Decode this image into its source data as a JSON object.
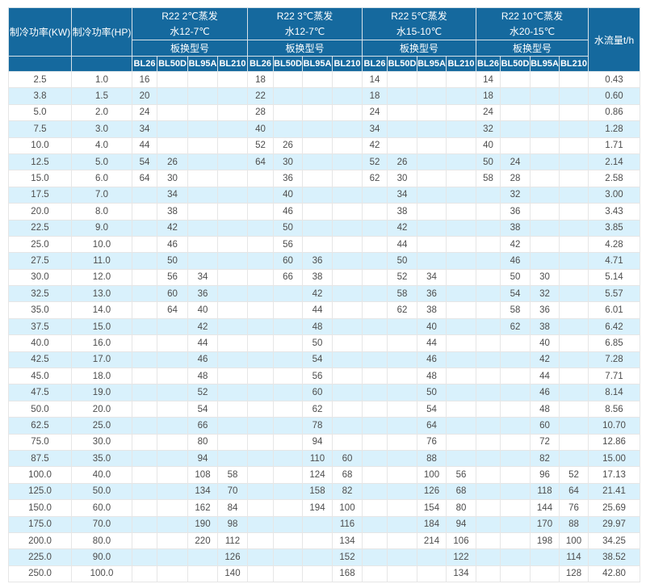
{
  "table": {
    "columns": {
      "kw": "制冷功率(KW)",
      "hp": "制冷功率(HP)",
      "flow": "水流量t/h"
    },
    "model_label": "板换型号",
    "groups": [
      {
        "title": "R22 2℃蒸发",
        "subtitle": "水12-7℃",
        "models": [
          "BL26",
          "BL50D",
          "BL95A",
          "BL210"
        ]
      },
      {
        "title": "R22 3℃蒸发",
        "subtitle": "水12-7℃",
        "models": [
          "BL26",
          "BL50D",
          "BL95A",
          "BL210"
        ]
      },
      {
        "title": "R22 5℃蒸发",
        "subtitle": "水15-10℃",
        "models": [
          "BL26",
          "BL50D",
          "BL95A",
          "BL210"
        ]
      },
      {
        "title": "R22 10℃蒸发",
        "subtitle": "水20-15℃",
        "models": [
          "BL26",
          "BL50D",
          "BL95A",
          "BL210"
        ]
      }
    ],
    "rows": [
      {
        "kw": "2.5",
        "hp": "1.0",
        "cells": [
          "16",
          "",
          "",
          "",
          "18",
          "",
          "",
          "",
          "14",
          "",
          "",
          "",
          "14",
          "",
          "",
          ""
        ],
        "flow": "0.43"
      },
      {
        "kw": "3.8",
        "hp": "1.5",
        "cells": [
          "20",
          "",
          "",
          "",
          "22",
          "",
          "",
          "",
          "18",
          "",
          "",
          "",
          "18",
          "",
          "",
          ""
        ],
        "flow": "0.60"
      },
      {
        "kw": "5.0",
        "hp": "2.0",
        "cells": [
          "24",
          "",
          "",
          "",
          "28",
          "",
          "",
          "",
          "24",
          "",
          "",
          "",
          "24",
          "",
          "",
          ""
        ],
        "flow": "0.86"
      },
      {
        "kw": "7.5",
        "hp": "3.0",
        "cells": [
          "34",
          "",
          "",
          "",
          "40",
          "",
          "",
          "",
          "34",
          "",
          "",
          "",
          "32",
          "",
          "",
          ""
        ],
        "flow": "1.28"
      },
      {
        "kw": "10.0",
        "hp": "4.0",
        "cells": [
          "44",
          "",
          "",
          "",
          "52",
          "26",
          "",
          "",
          "42",
          "",
          "",
          "",
          "40",
          "",
          "",
          ""
        ],
        "flow": "1.71"
      },
      {
        "kw": "12.5",
        "hp": "5.0",
        "cells": [
          "54",
          "26",
          "",
          "",
          "64",
          "30",
          "",
          "",
          "52",
          "26",
          "",
          "",
          "50",
          "24",
          "",
          ""
        ],
        "flow": "2.14"
      },
      {
        "kw": "15.0",
        "hp": "6.0",
        "cells": [
          "64",
          "30",
          "",
          "",
          "",
          "36",
          "",
          "",
          "62",
          "30",
          "",
          "",
          "58",
          "28",
          "",
          ""
        ],
        "flow": "2.58"
      },
      {
        "kw": "17.5",
        "hp": "7.0",
        "cells": [
          "",
          "34",
          "",
          "",
          "",
          "40",
          "",
          "",
          "",
          "34",
          "",
          "",
          "",
          "32",
          "",
          ""
        ],
        "flow": "3.00"
      },
      {
        "kw": "20.0",
        "hp": "8.0",
        "cells": [
          "",
          "38",
          "",
          "",
          "",
          "46",
          "",
          "",
          "",
          "38",
          "",
          "",
          "",
          "36",
          "",
          ""
        ],
        "flow": "3.43"
      },
      {
        "kw": "22.5",
        "hp": "9.0",
        "cells": [
          "",
          "42",
          "",
          "",
          "",
          "50",
          "",
          "",
          "",
          "42",
          "",
          "",
          "",
          "38",
          "",
          ""
        ],
        "flow": "3.85"
      },
      {
        "kw": "25.0",
        "hp": "10.0",
        "cells": [
          "",
          "46",
          "",
          "",
          "",
          "56",
          "",
          "",
          "",
          "44",
          "",
          "",
          "",
          "42",
          "",
          ""
        ],
        "flow": "4.28"
      },
      {
        "kw": "27.5",
        "hp": "11.0",
        "cells": [
          "",
          "50",
          "",
          "",
          "",
          "60",
          "36",
          "",
          "",
          "50",
          "",
          "",
          "",
          "46",
          "",
          ""
        ],
        "flow": "4.71"
      },
      {
        "kw": "30.0",
        "hp": "12.0",
        "cells": [
          "",
          "56",
          "34",
          "",
          "",
          "66",
          "38",
          "",
          "",
          "52",
          "34",
          "",
          "",
          "50",
          "30",
          ""
        ],
        "flow": "5.14"
      },
      {
        "kw": "32.5",
        "hp": "13.0",
        "cells": [
          "",
          "60",
          "36",
          "",
          "",
          "",
          "42",
          "",
          "",
          "58",
          "36",
          "",
          "",
          "54",
          "32",
          ""
        ],
        "flow": "5.57"
      },
      {
        "kw": "35.0",
        "hp": "14.0",
        "cells": [
          "",
          "64",
          "40",
          "",
          "",
          "",
          "44",
          "",
          "",
          "62",
          "38",
          "",
          "",
          "58",
          "36",
          ""
        ],
        "flow": "6.01"
      },
      {
        "kw": "37.5",
        "hp": "15.0",
        "cells": [
          "",
          "",
          "42",
          "",
          "",
          "",
          "48",
          "",
          "",
          "",
          "40",
          "",
          "",
          "62",
          "38",
          ""
        ],
        "flow": "6.42"
      },
      {
        "kw": "40.0",
        "hp": "16.0",
        "cells": [
          "",
          "",
          "44",
          "",
          "",
          "",
          "50",
          "",
          "",
          "",
          "44",
          "",
          "",
          "",
          "40",
          ""
        ],
        "flow": "6.85"
      },
      {
        "kw": "42.5",
        "hp": "17.0",
        "cells": [
          "",
          "",
          "46",
          "",
          "",
          "",
          "54",
          "",
          "",
          "",
          "46",
          "",
          "",
          "",
          "42",
          ""
        ],
        "flow": "7.28"
      },
      {
        "kw": "45.0",
        "hp": "18.0",
        "cells": [
          "",
          "",
          "48",
          "",
          "",
          "",
          "56",
          "",
          "",
          "",
          "48",
          "",
          "",
          "",
          "44",
          ""
        ],
        "flow": "7.71"
      },
      {
        "kw": "47.5",
        "hp": "19.0",
        "cells": [
          "",
          "",
          "52",
          "",
          "",
          "",
          "60",
          "",
          "",
          "",
          "50",
          "",
          "",
          "",
          "46",
          ""
        ],
        "flow": "8.14"
      },
      {
        "kw": "50.0",
        "hp": "20.0",
        "cells": [
          "",
          "",
          "54",
          "",
          "",
          "",
          "62",
          "",
          "",
          "",
          "54",
          "",
          "",
          "",
          "48",
          ""
        ],
        "flow": "8.56"
      },
      {
        "kw": "62.5",
        "hp": "25.0",
        "cells": [
          "",
          "",
          "66",
          "",
          "",
          "",
          "78",
          "",
          "",
          "",
          "64",
          "",
          "",
          "",
          "60",
          ""
        ],
        "flow": "10.70"
      },
      {
        "kw": "75.0",
        "hp": "30.0",
        "cells": [
          "",
          "",
          "80",
          "",
          "",
          "",
          "94",
          "",
          "",
          "",
          "76",
          "",
          "",
          "",
          "72",
          ""
        ],
        "flow": "12.86"
      },
      {
        "kw": "87.5",
        "hp": "35.0",
        "cells": [
          "",
          "",
          "94",
          "",
          "",
          "",
          "110",
          "60",
          "",
          "",
          "88",
          "",
          "",
          "",
          "82",
          ""
        ],
        "flow": "15.00"
      },
      {
        "kw": "100.0",
        "hp": "40.0",
        "cells": [
          "",
          "",
          "108",
          "58",
          "",
          "",
          "124",
          "68",
          "",
          "",
          "100",
          "56",
          "",
          "",
          "96",
          "52"
        ],
        "flow": "17.13"
      },
      {
        "kw": "125.0",
        "hp": "50.0",
        "cells": [
          "",
          "",
          "134",
          "70",
          "",
          "",
          "158",
          "82",
          "",
          "",
          "126",
          "68",
          "",
          "",
          "118",
          "64"
        ],
        "flow": "21.41"
      },
      {
        "kw": "150.0",
        "hp": "60.0",
        "cells": [
          "",
          "",
          "162",
          "84",
          "",
          "",
          "194",
          "100",
          "",
          "",
          "154",
          "80",
          "",
          "",
          "144",
          "76"
        ],
        "flow": "25.69"
      },
      {
        "kw": "175.0",
        "hp": "70.0",
        "cells": [
          "",
          "",
          "190",
          "98",
          "",
          "",
          "",
          "116",
          "",
          "",
          "184",
          "94",
          "",
          "",
          "170",
          "88"
        ],
        "flow": "29.97"
      },
      {
        "kw": "200.0",
        "hp": "80.0",
        "cells": [
          "",
          "",
          "220",
          "112",
          "",
          "",
          "",
          "134",
          "",
          "",
          "214",
          "106",
          "",
          "",
          "198",
          "100"
        ],
        "flow": "34.25"
      },
      {
        "kw": "225.0",
        "hp": "90.0",
        "cells": [
          "",
          "",
          "",
          "126",
          "",
          "",
          "",
          "152",
          "",
          "",
          "",
          "122",
          "",
          "",
          "",
          "114"
        ],
        "flow": "38.52"
      },
      {
        "kw": "250.0",
        "hp": "100.0",
        "cells": [
          "",
          "",
          "",
          "140",
          "",
          "",
          "",
          "168",
          "",
          "",
          "",
          "134",
          "",
          "",
          "",
          "128"
        ],
        "flow": "42.80"
      }
    ]
  },
  "colors": {
    "header_bg": "#15699e",
    "stripe_bg": "#d9f1fc",
    "body_text": "#4d4d4d"
  }
}
